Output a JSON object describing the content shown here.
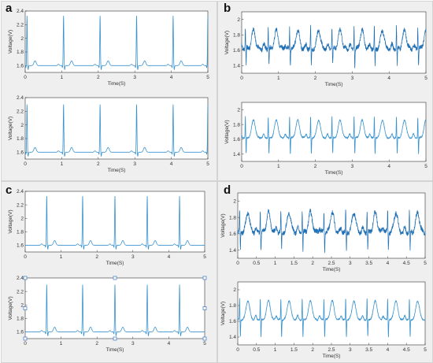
{
  "panels": [
    {
      "letter": "a"
    },
    {
      "letter": "b"
    },
    {
      "letter": "c"
    },
    {
      "letter": "d"
    }
  ],
  "chart_data": [
    {
      "panel": "a",
      "position": "top",
      "type": "line",
      "xlabel": "Time(S)",
      "ylabel": "Voltage(V)",
      "xlim": [
        0,
        5
      ],
      "ylim": [
        1.5,
        2.4
      ],
      "xticks": [
        0,
        1,
        2,
        3,
        4,
        5
      ],
      "yticks": [
        1.6,
        1.8,
        2.0,
        2.2,
        2.4
      ],
      "ytick_labels": [
        "1.6",
        "1.8",
        "2",
        "2.2",
        "2.4"
      ],
      "signal": "ecg-clean",
      "beat_times": [
        0.05,
        1.05,
        2.05,
        3.05,
        4.05,
        5.0
      ],
      "baseline": 1.6,
      "peak": 2.33,
      "color": "#3a93cf",
      "noise": 0
    },
    {
      "panel": "a",
      "position": "bottom",
      "type": "line",
      "xlabel": "Time(S)",
      "ylabel": "Voltage(V)",
      "xlim": [
        0,
        5
      ],
      "ylim": [
        1.5,
        2.4
      ],
      "xticks": [
        0,
        1,
        2,
        3,
        4,
        5
      ],
      "yticks": [
        1.6,
        1.8,
        2.0,
        2.2,
        2.4
      ],
      "ytick_labels": [
        "1.6",
        "1.8",
        "2",
        "2.2",
        "2.4"
      ],
      "signal": "ecg-clean",
      "beat_times": [
        0.05,
        1.05,
        2.05,
        3.05,
        4.05,
        5.0
      ],
      "baseline": 1.6,
      "peak": 2.3,
      "color": "#3a93cf",
      "noise": 0
    },
    {
      "panel": "b",
      "position": "top",
      "type": "line",
      "xlabel": "Time(S)",
      "ylabel": "Voltage(V)",
      "xlim": [
        0,
        5
      ],
      "ylim": [
        1.3,
        2.1
      ],
      "xticks": [
        0,
        1,
        2,
        3,
        4,
        5
      ],
      "yticks": [
        1.4,
        1.6,
        1.8,
        2.0
      ],
      "ytick_labels": [
        "1.4",
        "1.6",
        "1.8",
        "2"
      ],
      "signal": "ecg-noisy",
      "beat_times": [
        0.1,
        0.72,
        1.3,
        1.87,
        2.45,
        3.05,
        3.6,
        4.2,
        4.78
      ],
      "baseline": 1.62,
      "peak": 1.92,
      "color": "#1f6fb4",
      "noise": 0.03
    },
    {
      "panel": "b",
      "position": "bottom",
      "type": "line",
      "xlabel": "Time(S)",
      "ylabel": "Voltage(V)",
      "xlim": [
        0,
        5
      ],
      "ylim": [
        1.3,
        2.1
      ],
      "xticks": [
        0,
        1,
        2,
        3,
        4,
        5
      ],
      "yticks": [
        1.4,
        1.6,
        1.8,
        2.0
      ],
      "ytick_labels": [
        "1.4",
        "1.6",
        "1.8",
        "2"
      ],
      "signal": "ecg-filtered",
      "beat_times": [
        0.1,
        0.72,
        1.3,
        1.87,
        2.45,
        3.05,
        3.6,
        4.2,
        4.78
      ],
      "baseline": 1.62,
      "peak": 1.92,
      "color": "#3a93cf",
      "noise": 0.008
    },
    {
      "panel": "c",
      "position": "top",
      "type": "line",
      "xlabel": "Time(S)",
      "ylabel": "Voltage(V)",
      "xlim": [
        0,
        5
      ],
      "ylim": [
        1.5,
        2.4
      ],
      "xticks": [
        0,
        1,
        2,
        3,
        4,
        5
      ],
      "yticks": [
        1.6,
        1.8,
        2.0,
        2.2,
        2.4
      ],
      "ytick_labels": [
        "1.6",
        "1.8",
        "2",
        "2.2",
        "2.4"
      ],
      "signal": "ecg-clean",
      "beat_times": [
        0.6,
        1.6,
        2.5,
        3.4,
        4.3
      ],
      "baseline": 1.6,
      "peak": 2.33,
      "color": "#3a93cf",
      "noise": 0
    },
    {
      "panel": "c",
      "position": "bottom",
      "type": "line",
      "xlabel": "Time(S)",
      "ylabel": "Voltage(V)",
      "xlim": [
        0,
        5
      ],
      "ylim": [
        1.5,
        2.4
      ],
      "xticks": [
        0,
        1,
        2,
        3,
        4,
        5
      ],
      "yticks": [
        1.6,
        1.8,
        2.0,
        2.2,
        2.4
      ],
      "ytick_labels": [
        "1.6",
        "1.8",
        "2",
        "2.2",
        "2.4"
      ],
      "signal": "ecg-clean",
      "beat_times": [
        0.6,
        1.6,
        2.5,
        3.4,
        4.3
      ],
      "baseline": 1.6,
      "peak": 2.3,
      "color": "#3a93cf",
      "noise": 0,
      "selected": true
    },
    {
      "panel": "d",
      "position": "top",
      "type": "line",
      "xlabel": "Time(S)",
      "ylabel": "Voltage(V)",
      "xlim": [
        0,
        5
      ],
      "ylim": [
        1.3,
        2.1
      ],
      "xticks": [
        0,
        0.5,
        1,
        1.5,
        2,
        2.5,
        3,
        3.5,
        4,
        4.5,
        5
      ],
      "ytick_labels": [
        "1.4",
        "1.6",
        "1.8",
        "2"
      ],
      "yticks": [
        1.4,
        1.6,
        1.8,
        2.0
      ],
      "signal": "ecg-noisy",
      "xtick_labels": [
        "0",
        "0.5",
        "1",
        "1.5",
        "2",
        "2.5",
        "3",
        "3.5",
        "4",
        "4.5",
        "5"
      ],
      "beat_times": [
        0.05,
        0.6,
        1.15,
        1.72,
        2.3,
        2.88,
        3.45,
        4.0,
        4.58
      ],
      "baseline": 1.62,
      "peak": 1.9,
      "color": "#1f6fb4",
      "noise": 0.03
    },
    {
      "panel": "d",
      "position": "bottom",
      "type": "line",
      "xlabel": "Time(S)",
      "ylabel": "Voltage(V)",
      "xlim": [
        0,
        5
      ],
      "ylim": [
        1.3,
        2.1
      ],
      "xticks": [
        0,
        0.5,
        1,
        1.5,
        2,
        2.5,
        3,
        3.5,
        4,
        4.5,
        5
      ],
      "ytick_labels": [
        "1.4",
        "1.6",
        "1.8",
        "2"
      ],
      "yticks": [
        1.4,
        1.6,
        1.8,
        2.0
      ],
      "signal": "ecg-filtered",
      "xtick_labels": [
        "0",
        "0.5",
        "1",
        "1.5",
        "2",
        "2.5",
        "3",
        "3.5",
        "4",
        "4.5",
        "5"
      ],
      "beat_times": [
        0.05,
        0.6,
        1.15,
        1.72,
        2.3,
        2.88,
        3.45,
        4.0,
        4.58
      ],
      "baseline": 1.62,
      "peak": 1.9,
      "color": "#3a93cf",
      "noise": 0.008
    }
  ]
}
